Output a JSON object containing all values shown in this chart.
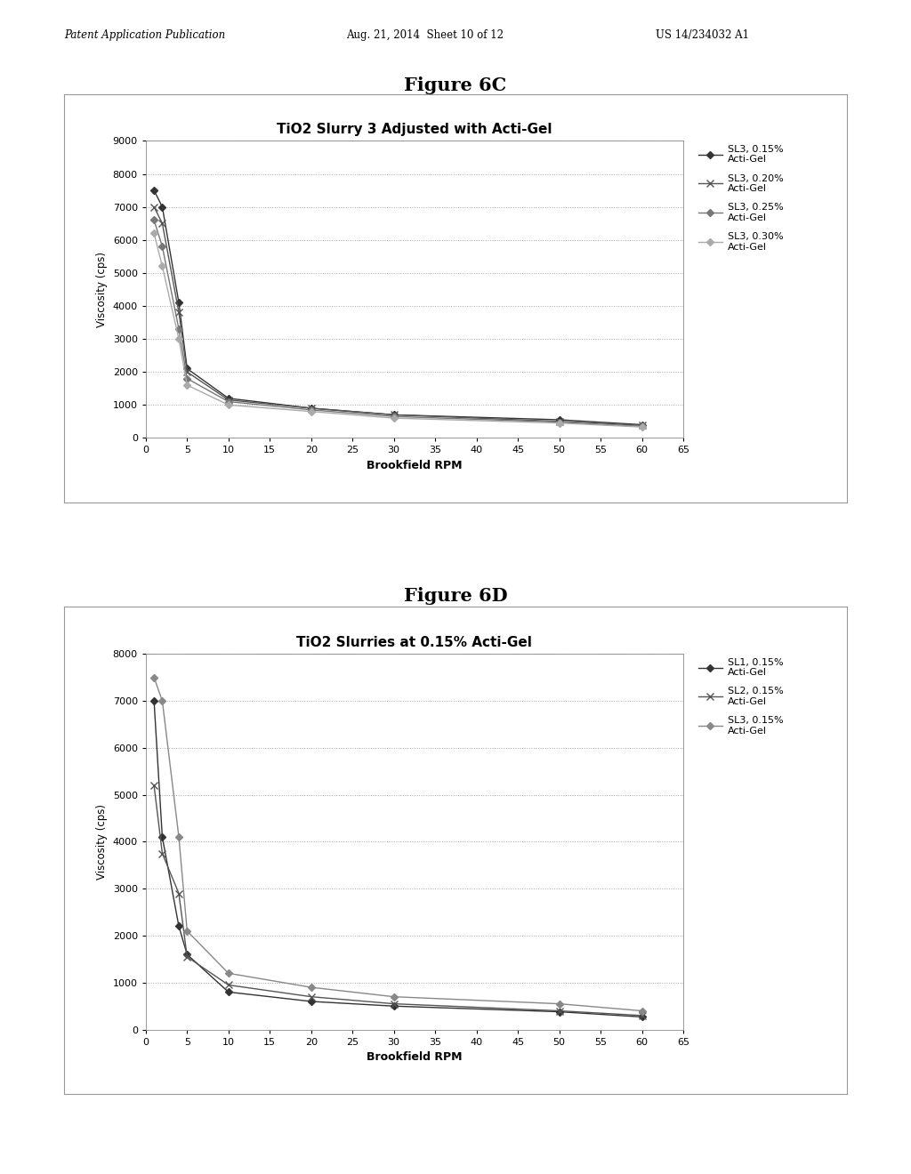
{
  "fig6c": {
    "title": "TiO2 Slurry 3 Adjusted with Acti-Gel",
    "xlabel": "Brookfield RPM",
    "ylabel": "Viscosity (cps)",
    "ylim": [
      0,
      9000
    ],
    "yticks": [
      0,
      1000,
      2000,
      3000,
      4000,
      5000,
      6000,
      7000,
      8000,
      9000
    ],
    "xlim": [
      0,
      65
    ],
    "xticks": [
      0,
      5,
      10,
      15,
      20,
      25,
      30,
      35,
      40,
      45,
      50,
      55,
      60,
      65
    ],
    "series": [
      {
        "label": "SL3, 0.15%\nActi-Gel",
        "x": [
          1,
          2,
          4,
          5,
          10,
          20,
          30,
          50,
          60
        ],
        "y": [
          7500,
          7000,
          4100,
          2100,
          1200,
          900,
          700,
          550,
          400
        ],
        "color": "#333333",
        "linestyle": "-",
        "marker": "D",
        "markersize": 4
      },
      {
        "label": "SL3, 0.20%\nActi-Gel",
        "x": [
          1,
          2,
          4,
          5,
          10,
          20,
          30,
          50,
          60
        ],
        "y": [
          7000,
          6500,
          3800,
          2000,
          1150,
          900,
          700,
          500,
          380
        ],
        "color": "#555555",
        "linestyle": "-",
        "marker": "x",
        "markersize": 6
      },
      {
        "label": "SL3, 0.25%\nActi-Gel",
        "x": [
          1,
          2,
          4,
          5,
          10,
          20,
          30,
          50,
          60
        ],
        "y": [
          6600,
          5800,
          3300,
          1800,
          1100,
          850,
          650,
          480,
          350
        ],
        "color": "#777777",
        "linestyle": "-",
        "marker": "D",
        "markersize": 4
      },
      {
        "label": "SL3, 0.30%\nActi-Gel",
        "x": [
          1,
          2,
          4,
          5,
          10,
          20,
          30,
          50,
          60
        ],
        "y": [
          6200,
          5200,
          3000,
          1600,
          1000,
          800,
          600,
          450,
          330
        ],
        "color": "#aaaaaa",
        "linestyle": "-",
        "marker": "D",
        "markersize": 4
      }
    ]
  },
  "fig6d": {
    "title": "TiO2 Slurries at 0.15% Acti-Gel",
    "xlabel": "Brookfield RPM",
    "ylabel": "Viscosity (cps)",
    "ylim": [
      0,
      8000
    ],
    "yticks": [
      0,
      1000,
      2000,
      3000,
      4000,
      5000,
      6000,
      7000,
      8000
    ],
    "xlim": [
      0,
      65
    ],
    "xticks": [
      0,
      5,
      10,
      15,
      20,
      25,
      30,
      35,
      40,
      45,
      50,
      55,
      60,
      65
    ],
    "series": [
      {
        "label": "SL1, 0.15%\nActi-Gel",
        "x": [
          1,
          2,
          4,
          5,
          10,
          20,
          30,
          50,
          60
        ],
        "y": [
          7000,
          4100,
          2200,
          1600,
          800,
          600,
          500,
          380,
          270
        ],
        "color": "#333333",
        "linestyle": "-",
        "marker": "D",
        "markersize": 4
      },
      {
        "label": "SL2, 0.15%\nActi-Gel",
        "x": [
          1,
          2,
          4,
          5,
          10,
          20,
          30,
          50,
          60
        ],
        "y": [
          5200,
          3750,
          2900,
          1550,
          950,
          700,
          550,
          400,
          300
        ],
        "color": "#555555",
        "linestyle": "-",
        "marker": "x",
        "markersize": 6
      },
      {
        "label": "SL3, 0.15%\nActi-Gel",
        "x": [
          1,
          2,
          4,
          5,
          10,
          20,
          30,
          50,
          60
        ],
        "y": [
          7500,
          7000,
          4100,
          2100,
          1200,
          900,
          700,
          550,
          400
        ],
        "color": "#888888",
        "linestyle": "-",
        "marker": "D",
        "markersize": 4
      }
    ]
  },
  "fig6c_label": "Figure 6C",
  "fig6d_label": "Figure 6D",
  "header_left": "Patent Application Publication",
  "header_mid": "Aug. 21, 2014  Sheet 10 of 12",
  "header_right": "US 14/234032 A1",
  "background_color": "#ffffff",
  "plot_bg": "#ffffff"
}
